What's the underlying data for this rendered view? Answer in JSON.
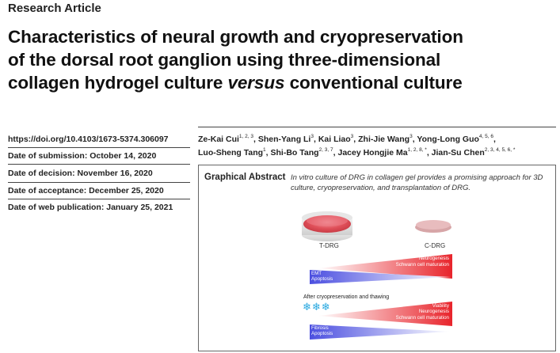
{
  "article_type": "Research Article",
  "title": {
    "line1": "Characteristics of neural growth and cryopreservation",
    "line2": "of the dorsal root ganglion using three-dimensional",
    "line3_a": "collagen hydrogel culture ",
    "line3_em": "versus",
    "line3_b": " conventional culture"
  },
  "meta": {
    "doi": "https://doi.org/10.4103/1673-5374.306097",
    "submission": "Date of submission: October 14, 2020",
    "decision": "Date of decision: November 16, 2020",
    "acceptance": "Date of acceptance: December 25, 2020",
    "web_publication": "Date of web publication: January 25, 2021"
  },
  "authors": [
    {
      "name": "Ze-Kai Cui",
      "aff": "1, 2, 3"
    },
    {
      "name": "Shen-Yang Li",
      "aff": "3"
    },
    {
      "name": "Kai Liao",
      "aff": "3"
    },
    {
      "name": "Zhi-Jie Wang",
      "aff": "3"
    },
    {
      "name": "Yong-Long Guo",
      "aff": "4, 5, 6"
    },
    {
      "name": "Luo-Sheng Tang",
      "aff": "1"
    },
    {
      "name": "Shi-Bo Tang",
      "aff": "2, 3, 7"
    },
    {
      "name": "Jacey Hongjie Ma",
      "aff": "1, 2, 8, *"
    },
    {
      "name": "Jian-Su Chen",
      "aff": "2, 3, 4, 5, 6, *"
    }
  ],
  "graphical_abstract": {
    "heading": "Graphical Abstract",
    "caption_italic": "In vitro",
    "caption_rest": " culture of DRG in collagen gel provides a promising approach for 3D culture, cryopreservation, and transplantation of DRG.",
    "dish_left_label": "T-DRG",
    "dish_right_label": "C-DRG",
    "top_red_1": "Neurogenesis",
    "top_red_2": "Schwann cell maturation",
    "top_blue_1": "EMT",
    "top_blue_2": "Apoptosis",
    "after_label": "After cryopreservation and thawing",
    "snowflakes": "❄❄❄",
    "bottom_red_1": "Viability",
    "bottom_red_2": "Neurogenesis",
    "bottom_red_3": "Schwann cell maturation",
    "bottom_blue_1": "Fibrosis",
    "bottom_blue_2": "Apoptosis",
    "colors": {
      "red_wedge": "#e8242b",
      "blue_wedge": "#4b4fe0",
      "dish_red": "#e0505a",
      "snow": "#27a8e0"
    }
  }
}
